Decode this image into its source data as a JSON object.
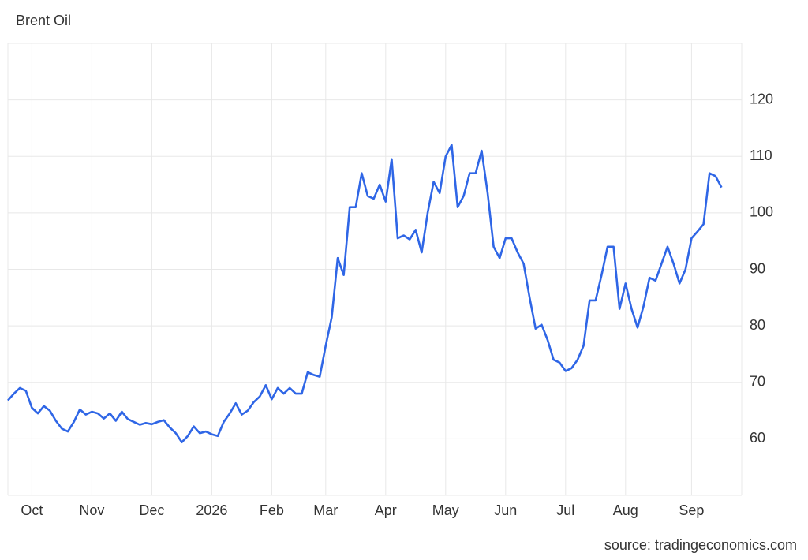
{
  "chart_data": {
    "type": "line",
    "title": "Brent Oil",
    "source": "source: tradingeconomics.com",
    "categories": [
      null,
      null,
      null,
      null,
      "Oct",
      null,
      null,
      null,
      null,
      null,
      null,
      null,
      null,
      null,
      "Nov",
      null,
      null,
      null,
      null,
      null,
      null,
      null,
      null,
      null,
      "Dec",
      null,
      null,
      null,
      null,
      null,
      null,
      null,
      null,
      null,
      "2026",
      null,
      null,
      null,
      null,
      null,
      null,
      null,
      null,
      null,
      "Feb",
      null,
      null,
      null,
      null,
      null,
      null,
      null,
      null,
      "Mar",
      null,
      null,
      null,
      null,
      null,
      null,
      null,
      null,
      null,
      "Apr",
      null,
      null,
      null,
      null,
      null,
      null,
      null,
      null,
      null,
      "May",
      null,
      null,
      null,
      null,
      null,
      null,
      null,
      null,
      null,
      "Jun",
      null,
      null,
      null,
      null,
      null,
      null,
      null,
      null,
      null,
      "Jul",
      null,
      null,
      null,
      null,
      null,
      null,
      null,
      null,
      null,
      "Aug",
      null,
      null,
      null,
      null,
      null,
      null,
      null,
      null,
      null,
      null,
      "Sep",
      null,
      null,
      null,
      null,
      null
    ],
    "values": [
      66.8,
      68,
      69,
      68.5,
      65.5,
      64.5,
      65.8,
      65,
      63.2,
      61.8,
      61.3,
      63,
      65.2,
      64.3,
      64.8,
      64.5,
      63.6,
      64.5,
      63.2,
      64.8,
      63.5,
      63,
      62.5,
      62.8,
      62.6,
      63,
      63.3,
      62,
      61,
      59.4,
      60.5,
      62.2,
      61,
      61.3,
      60.8,
      60.5,
      63,
      64.5,
      66.3,
      64.3,
      65,
      66.5,
      67.5,
      69.5,
      67,
      69,
      68,
      69,
      68,
      68,
      71.8,
      71.3,
      71,
      76.5,
      81.5,
      92,
      89,
      101,
      101,
      107,
      103,
      102.5,
      105,
      102,
      109.5,
      95.5,
      96,
      95.3,
      97,
      93,
      100,
      105.5,
      103.5,
      110,
      112,
      101,
      103,
      107,
      107,
      111,
      103.5,
      94,
      92,
      95.5,
      95.5,
      93,
      91,
      85,
      79.5,
      80.2,
      77.5,
      74,
      73.5,
      72,
      72.5,
      74,
      76.5,
      84.5,
      84.5,
      89,
      94,
      94,
      83,
      87.5,
      83,
      79.7,
      83.5,
      88.5,
      88,
      91,
      94,
      91,
      87.5,
      90,
      95.5,
      96.7,
      98,
      107,
      106.5,
      104.5
    ],
    "color": "#2f66e6",
    "ylim": [
      50,
      130
    ],
    "yticks": [
      60,
      70,
      80,
      90,
      100,
      110,
      120
    ],
    "grid": true
  }
}
